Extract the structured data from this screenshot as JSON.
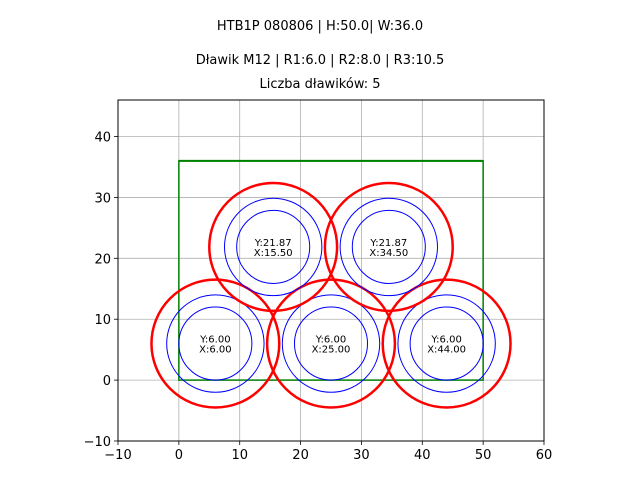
{
  "titles": {
    "line1": "HTB1P 080806 | H:50.0| W:36.0",
    "line2": "Dławik M12 | R1:6.0 | R2:8.0 | R3:10.5",
    "line3": "Liczba dławików: 5"
  },
  "chart_data": {
    "type": "scatter",
    "title": "HTB1P 080806 | H:50.0| W:36.0 / Dławik M12 | R1:6.0 | R2:8.0 | R3:10.5 / Liczba dławików: 5",
    "xlabel": "",
    "ylabel": "",
    "xlim": [
      -10,
      60
    ],
    "ylim": [
      -10,
      46
    ],
    "xticks": [
      -10,
      0,
      10,
      20,
      30,
      40,
      50,
      60
    ],
    "yticks": [
      -10,
      0,
      10,
      20,
      30,
      40
    ],
    "grid": true,
    "rectangle": {
      "x": 0,
      "y": 0,
      "width": 50,
      "height": 36,
      "color": "#008000"
    },
    "radii": {
      "R1": 6.0,
      "R2": 8.0,
      "R3": 10.5
    },
    "colors": {
      "R1": "#0000ff",
      "R2": "#0000ff",
      "R3": "#ff0000"
    },
    "glands": [
      {
        "x": 6.0,
        "y": 6.0,
        "label_y": "Y:6.00",
        "label_x": "X:6.00"
      },
      {
        "x": 25.0,
        "y": 6.0,
        "label_y": "Y:6.00",
        "label_x": "X:25.00"
      },
      {
        "x": 44.0,
        "y": 6.0,
        "label_y": "Y:6.00",
        "label_x": "X:44.00"
      },
      {
        "x": 15.5,
        "y": 21.87,
        "label_y": "Y:21.87",
        "label_x": "X:15.50"
      },
      {
        "x": 34.5,
        "y": 21.87,
        "label_y": "Y:21.87",
        "label_x": "X:34.50"
      }
    ]
  }
}
